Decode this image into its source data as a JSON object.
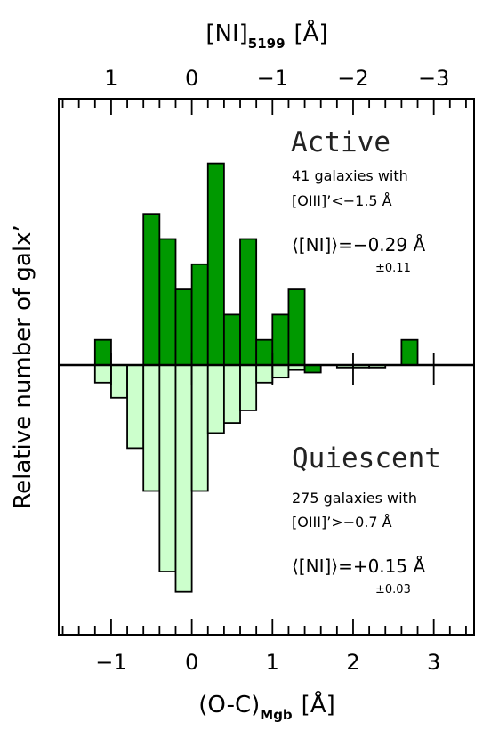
{
  "chart_data": {
    "type": "bar",
    "title": "",
    "xlabel": "(O-C)",
    "xlabel_sub": "Mgb",
    "xlabel_unit": "[Å]",
    "x2label": "[NI]",
    "x2label_sub": "5199",
    "x2label_unit": "[Å]",
    "ylabel": "Relative number of galx’",
    "xlim": [
      -1.65,
      3.5
    ],
    "x_ticks": [
      -1,
      0,
      1,
      2,
      3
    ],
    "x_tick_labels": [
      "−1",
      "0",
      "1",
      "2",
      "3"
    ],
    "x2_ticks": [
      -1,
      0,
      1,
      2,
      3
    ],
    "x2_tick_labels": [
      "1",
      "0",
      "−1",
      "−2",
      "−3"
    ],
    "bin_width": 0.2,
    "series": [
      {
        "name": "Active",
        "direction": "up",
        "color": "#009900",
        "bins": [
          {
            "x0": -1.2,
            "x1": -1.0,
            "value": 1.0
          },
          {
            "x0": -0.6,
            "x1": -0.4,
            "value": 6.0
          },
          {
            "x0": -0.4,
            "x1": -0.2,
            "value": 5.0
          },
          {
            "x0": -0.2,
            "x1": 0.0,
            "value": 3.0
          },
          {
            "x0": 0.0,
            "x1": 0.2,
            "value": 4.0
          },
          {
            "x0": 0.2,
            "x1": 0.4,
            "value": 8.0
          },
          {
            "x0": 0.4,
            "x1": 0.6,
            "value": 2.0
          },
          {
            "x0": 0.6,
            "x1": 0.8,
            "value": 5.0
          },
          {
            "x0": 0.8,
            "x1": 1.0,
            "value": 1.0
          },
          {
            "x0": 1.0,
            "x1": 1.2,
            "value": 2.0
          },
          {
            "x0": 1.2,
            "x1": 1.4,
            "value": 3.0
          },
          {
            "x0": 1.4,
            "x1": 1.6,
            "value": -0.3
          },
          {
            "x0": 2.6,
            "x1": 2.8,
            "value": 1.0
          }
        ]
      },
      {
        "name": "Quiescent",
        "direction": "down",
        "color": "#ccffcc",
        "bins": [
          {
            "x0": -1.2,
            "x1": -1.0,
            "value": 0.7
          },
          {
            "x0": -1.0,
            "x1": -0.8,
            "value": 1.3
          },
          {
            "x0": -0.8,
            "x1": -0.6,
            "value": 3.3
          },
          {
            "x0": -0.6,
            "x1": -0.4,
            "value": 5.0
          },
          {
            "x0": -0.4,
            "x1": -0.2,
            "value": 8.2
          },
          {
            "x0": -0.2,
            "x1": 0.0,
            "value": 9.0
          },
          {
            "x0": 0.0,
            "x1": 0.2,
            "value": 5.0
          },
          {
            "x0": 0.2,
            "x1": 0.4,
            "value": 2.7
          },
          {
            "x0": 0.4,
            "x1": 0.6,
            "value": 2.3
          },
          {
            "x0": 0.6,
            "x1": 0.8,
            "value": 1.8
          },
          {
            "x0": 0.8,
            "x1": 1.0,
            "value": 0.7
          },
          {
            "x0": 1.0,
            "x1": 1.2,
            "value": 0.5
          },
          {
            "x0": 1.2,
            "x1": 1.4,
            "value": 0.2
          },
          {
            "x0": 1.8,
            "x1": 2.0,
            "value": 0.1
          },
          {
            "x0": 2.0,
            "x1": 2.2,
            "value": 0.1
          },
          {
            "x0": 2.2,
            "x1": 2.4,
            "value": 0.1
          }
        ]
      }
    ],
    "annotations": {
      "active": {
        "title": "Active",
        "line1": "41 galaxies with",
        "line2": "[OIII]’<−1.5 Å",
        "mean": "⟨[NI]⟩=−0.29 Å",
        "err": "±0.11"
      },
      "quiescent": {
        "title": "Quiescent",
        "line1": "275 galaxies with",
        "line2": "[OIII]’>−0.7 Å",
        "mean": "⟨[NI]⟩=+0.15 Å",
        "err": "±0.03"
      }
    },
    "grid": false,
    "legend": "none"
  }
}
